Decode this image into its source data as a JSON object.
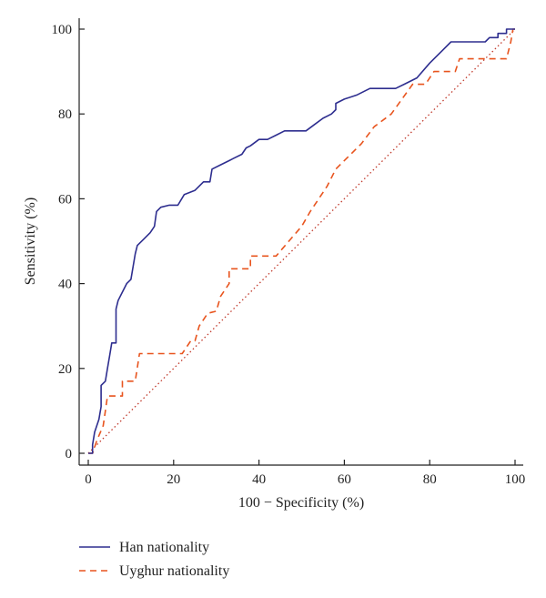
{
  "chart_data": {
    "type": "line",
    "xlabel": "100 − Specificity (%)",
    "ylabel": "Sensitivity (%)",
    "xlim": [
      0,
      100
    ],
    "ylim": [
      0,
      100
    ],
    "x_ticks": [
      0,
      20,
      40,
      60,
      80,
      100
    ],
    "y_ticks": [
      0,
      20,
      40,
      60,
      80,
      100
    ],
    "grid": false,
    "legend_position": "bottom-left, below plot",
    "series": [
      {
        "name": "Han nationality",
        "color": "#2e2e8f",
        "line_style": "solid",
        "points": [
          [
            0,
            0
          ],
          [
            1,
            0
          ],
          [
            1,
            2
          ],
          [
            1.5,
            5
          ],
          [
            2.5,
            8
          ],
          [
            3,
            11
          ],
          [
            3,
            16
          ],
          [
            4,
            17
          ],
          [
            4.5,
            20
          ],
          [
            5,
            23
          ],
          [
            5.5,
            26
          ],
          [
            6.5,
            26
          ],
          [
            6.5,
            34
          ],
          [
            7,
            36
          ],
          [
            8,
            38
          ],
          [
            9,
            40
          ],
          [
            10,
            41
          ],
          [
            11,
            47
          ],
          [
            11.5,
            49
          ],
          [
            13,
            50.5
          ],
          [
            14.5,
            52
          ],
          [
            15.5,
            53.5
          ],
          [
            16,
            57
          ],
          [
            17,
            58
          ],
          [
            19,
            58.5
          ],
          [
            21,
            58.5
          ],
          [
            22.5,
            61
          ],
          [
            25,
            62
          ],
          [
            27,
            64
          ],
          [
            28.5,
            64
          ],
          [
            29,
            67
          ],
          [
            31,
            68
          ],
          [
            33,
            69
          ],
          [
            34,
            69.5
          ],
          [
            36,
            70.5
          ],
          [
            37,
            72
          ],
          [
            38,
            72.5
          ],
          [
            40,
            74
          ],
          [
            42,
            74
          ],
          [
            44,
            75
          ],
          [
            46,
            76
          ],
          [
            48,
            76
          ],
          [
            51,
            76
          ],
          [
            53,
            77.5
          ],
          [
            55,
            79
          ],
          [
            57,
            80
          ],
          [
            58,
            81
          ],
          [
            58,
            82.5
          ],
          [
            60,
            83.5
          ],
          [
            63,
            84.5
          ],
          [
            66,
            86
          ],
          [
            72,
            86
          ],
          [
            74,
            87
          ],
          [
            77,
            88.5
          ],
          [
            80,
            92
          ],
          [
            83,
            95
          ],
          [
            85,
            97
          ],
          [
            93,
            97
          ],
          [
            94,
            98
          ],
          [
            96,
            98
          ],
          [
            96,
            99
          ],
          [
            98,
            99
          ],
          [
            98,
            100
          ],
          [
            100,
            100
          ]
        ]
      },
      {
        "name": "Uyghur nationality",
        "color": "#e8541e",
        "line_style": "dashed",
        "points": [
          [
            0,
            0
          ],
          [
            1,
            0
          ],
          [
            2,
            3
          ],
          [
            3.5,
            6.5
          ],
          [
            4,
            10
          ],
          [
            4.5,
            13.5
          ],
          [
            8,
            13.5
          ],
          [
            8,
            17
          ],
          [
            11,
            17
          ],
          [
            12,
            23.5
          ],
          [
            22,
            23.5
          ],
          [
            24,
            26.5
          ],
          [
            25,
            26.5
          ],
          [
            26,
            30
          ],
          [
            28,
            33
          ],
          [
            30,
            33.5
          ],
          [
            31,
            37
          ],
          [
            33,
            40
          ],
          [
            33,
            43.5
          ],
          [
            38,
            43.5
          ],
          [
            38,
            46.5
          ],
          [
            44,
            46.5
          ],
          [
            47,
            50
          ],
          [
            50,
            53.5
          ],
          [
            52,
            57
          ],
          [
            54,
            60
          ],
          [
            56,
            63
          ],
          [
            58,
            67
          ],
          [
            61,
            70
          ],
          [
            64,
            73
          ],
          [
            67,
            77
          ],
          [
            71,
            80
          ],
          [
            76,
            87
          ],
          [
            79,
            87
          ],
          [
            81,
            90
          ],
          [
            86,
            90
          ],
          [
            87,
            93
          ],
          [
            98,
            93
          ],
          [
            99,
            97
          ],
          [
            99.5,
            100
          ],
          [
            100,
            100
          ]
        ]
      },
      {
        "name": "",
        "color": "#c0392b",
        "line_style": "dotted",
        "points": [
          [
            0,
            0
          ],
          [
            100,
            100
          ]
        ]
      }
    ]
  }
}
